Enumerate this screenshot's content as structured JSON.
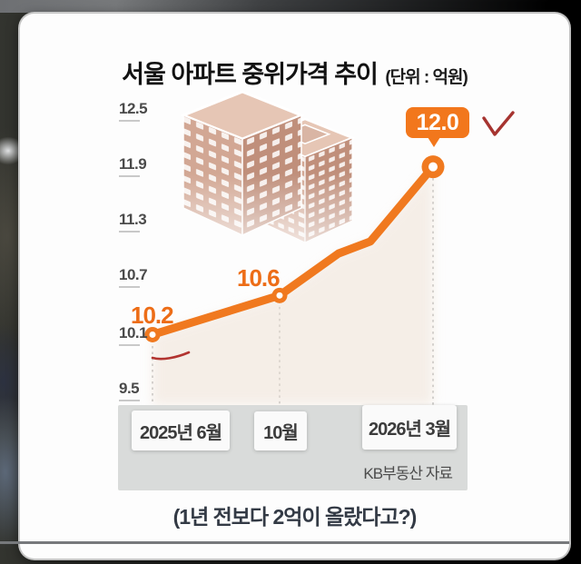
{
  "chart_data": {
    "type": "line",
    "title": "서울 아파트 중위가격 추이",
    "unit_label": "(단위 : 억원)",
    "categories": [
      "2025년 6월",
      "10월",
      "2026년 3월"
    ],
    "values": [
      10.2,
      10.6,
      12.0
    ],
    "point_labels": [
      "10.2",
      "10.6",
      "12.0"
    ],
    "yticks": [
      "12.5",
      "11.9",
      "11.3",
      "10.7",
      "10.1",
      "9.5"
    ],
    "ylim": [
      9.5,
      12.5
    ],
    "source": "KB부동산 자료",
    "legend": "none",
    "grid": "dotted-vertical-lines-at-data-points",
    "line_color": "#f0791f",
    "label_color": "#ed6d17",
    "annotation_color": "#a63430",
    "marker_style": "orange-ring-white-center",
    "annotations": [
      "red-checkmark-beside-12.0-badge",
      "red-hand-drawn-underline-below-first-point"
    ],
    "path_points": [
      {
        "x_frac": 0.0,
        "value": 10.08
      },
      {
        "x_frac": 0.453,
        "value": 10.5
      },
      {
        "x_frac": 0.663,
        "value": 10.95
      },
      {
        "x_frac": 0.777,
        "value": 11.08
      },
      {
        "x_frac": 1.0,
        "value": 11.88
      }
    ],
    "marker_indices": [
      0,
      1,
      4
    ]
  },
  "footer": {
    "caption": "(1년 전보다 2억이 올랐다고?)"
  }
}
